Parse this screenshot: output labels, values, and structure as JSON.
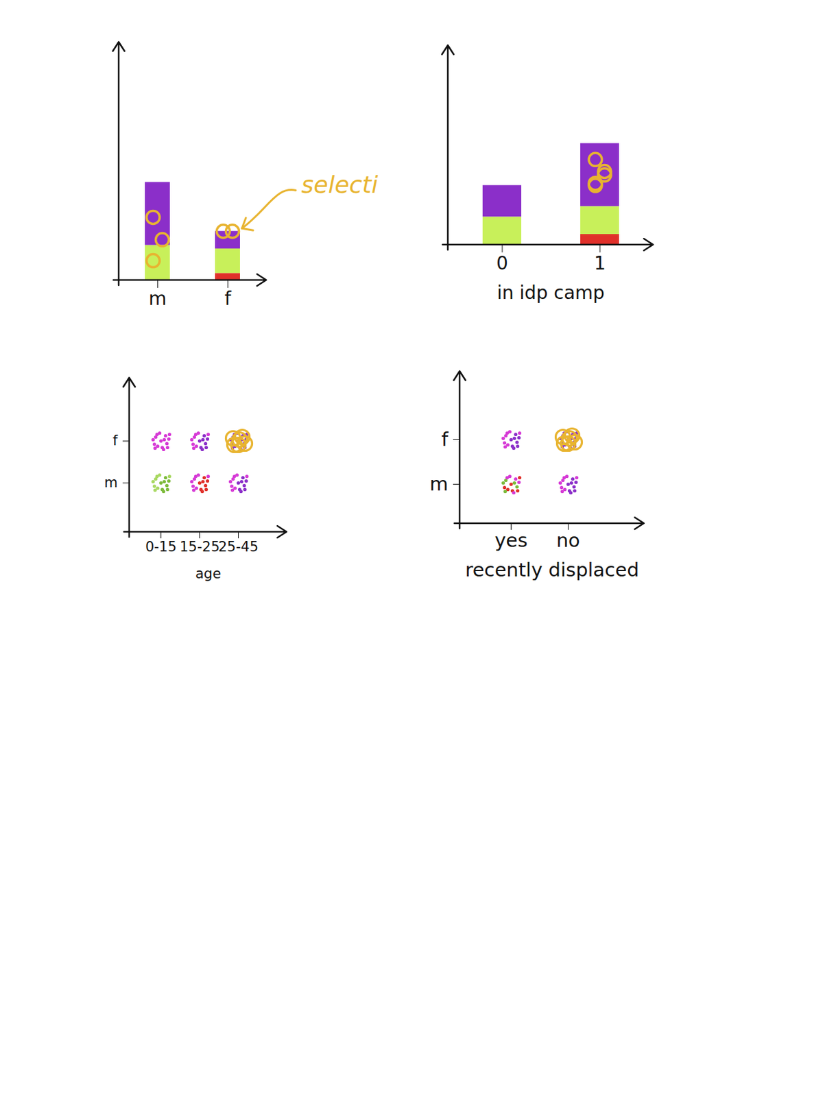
{
  "chart_data": [
    {
      "type": "bar",
      "stacked": true,
      "categories": [
        "m",
        "f"
      ],
      "series": [
        {
          "color": "#e0302a",
          "values": [
            0,
            10
          ]
        },
        {
          "color": "#c8f05a",
          "values": [
            50,
            35
          ]
        },
        {
          "color": "#8b2fc9",
          "values": [
            90,
            25
          ]
        }
      ],
      "ylim": [
        0,
        340
      ],
      "yticks": [],
      "tick_labels": "x",
      "selected": {
        "color": "#e8b430",
        "x": [
          "m",
          "m",
          "m",
          "f",
          "f"
        ],
        "y": [
          90,
          58,
          28,
          70,
          70
        ]
      },
      "annotations": [
        {
          "text": "selecti",
          "x": "f",
          "y": 70,
          "color": "#e8b430"
        }
      ]
    },
    {
      "type": "bar",
      "stacked": true,
      "categories": [
        "0",
        "1"
      ],
      "xlabel": "in idp camp",
      "series": [
        {
          "color": "#e0302a",
          "values": [
            0,
            15
          ]
        },
        {
          "color": "#c8f05a",
          "values": [
            40,
            40
          ]
        },
        {
          "color": "#8b2fc9",
          "values": [
            45,
            90
          ]
        }
      ],
      "ylim": [
        0,
        285
      ],
      "yticks": [],
      "tick_labels": "x",
      "selected": {
        "color": "#e8b430",
        "x": [
          "1",
          "1",
          "1",
          "1",
          "1"
        ],
        "y": [
          122,
          105,
          88,
          100,
          85
        ]
      }
    },
    {
      "type": "scatter",
      "categories": [
        "0-15",
        "15-25",
        "25-45"
      ],
      "y_categories": [
        "m",
        "f"
      ],
      "xlabel": "age",
      "cells": [
        {
          "x": "0-15",
          "y": "f",
          "colors": [
            "#d63ad6"
          ]
        },
        {
          "x": "15-25",
          "y": "f",
          "colors": [
            "#8b2fc9",
            "#d63ad6"
          ]
        },
        {
          "x": "25-45",
          "y": "f",
          "colors": [
            "#8b2fc9"
          ]
        },
        {
          "x": "0-15",
          "y": "m",
          "colors": [
            "#7dbb3c",
            "#a8d860"
          ]
        },
        {
          "x": "15-25",
          "y": "m",
          "colors": [
            "#e0302a",
            "#d63ad6"
          ]
        },
        {
          "x": "25-45",
          "y": "m",
          "colors": [
            "#8b2fc9",
            "#d63ad6"
          ]
        }
      ],
      "selected": {
        "color": "#e8b430",
        "cells": [
          {
            "x": "25-45",
            "y": "f"
          }
        ]
      }
    },
    {
      "type": "scatter",
      "categories": [
        "yes",
        "no"
      ],
      "y_categories": [
        "m",
        "f"
      ],
      "xlabel": "recently displaced",
      "cells": [
        {
          "x": "yes",
          "y": "f",
          "colors": [
            "#8b2fc9",
            "#d63ad6"
          ]
        },
        {
          "x": "no",
          "y": "f",
          "colors": [
            "#8b2fc9"
          ]
        },
        {
          "x": "yes",
          "y": "m",
          "colors": [
            "#e0302a",
            "#7dbb3c",
            "#d63ad6"
          ]
        },
        {
          "x": "no",
          "y": "m",
          "colors": [
            "#8b2fc9",
            "#d63ad6"
          ]
        }
      ],
      "selected": {
        "color": "#e8b430",
        "cells": [
          {
            "x": "no",
            "y": "f"
          }
        ]
      }
    }
  ]
}
